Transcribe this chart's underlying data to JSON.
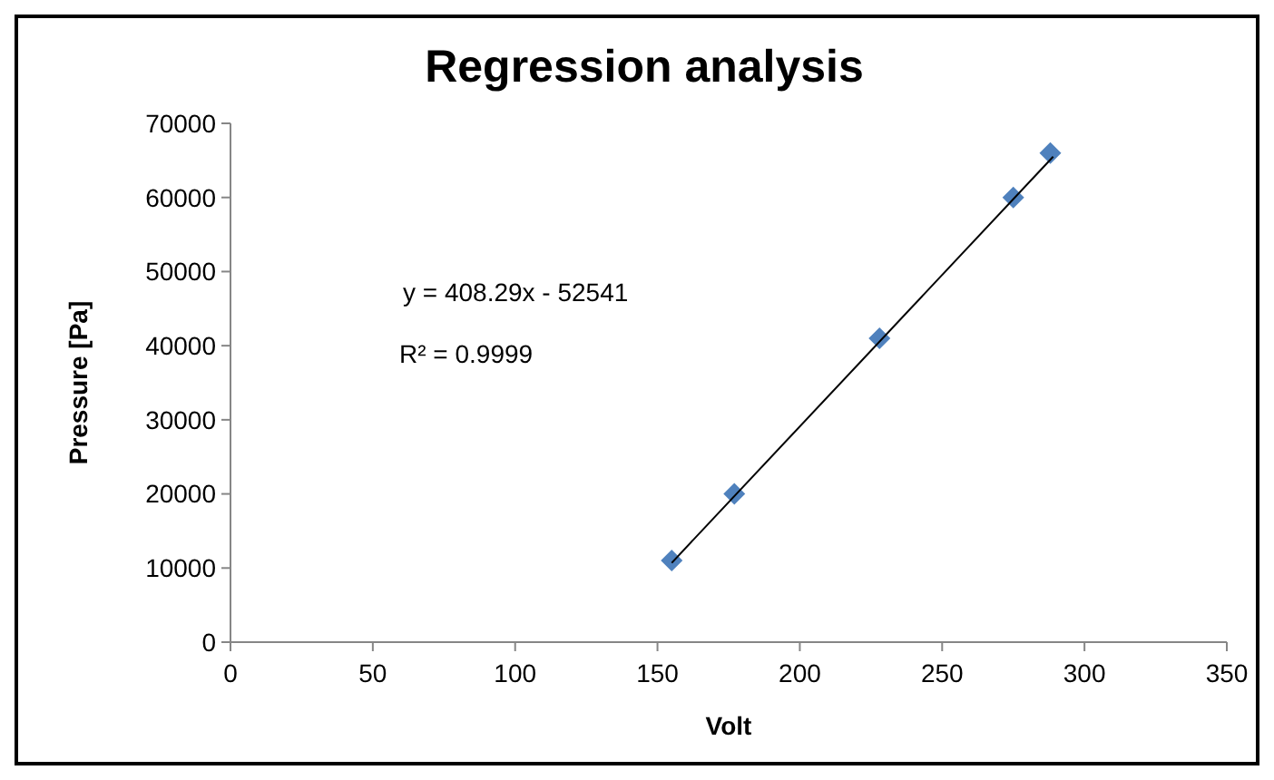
{
  "chart_data": {
    "type": "scatter",
    "title": "Regression analysis",
    "xlabel": "Volt",
    "ylabel": "Pressure [Pa]",
    "xlim": [
      0,
      350
    ],
    "xticks": [
      0,
      50,
      100,
      150,
      200,
      250,
      300,
      350
    ],
    "ylim": [
      0,
      70000
    ],
    "yticks": [
      0,
      10000,
      20000,
      30000,
      40000,
      50000,
      60000,
      70000
    ],
    "grid": false,
    "marker": "diamond",
    "series": [
      {
        "type": "scatter",
        "color": "#4f81bd",
        "x": [
          155,
          177,
          228,
          275,
          288
        ],
        "values": [
          11000,
          20000,
          41000,
          60000,
          66000
        ]
      },
      {
        "type": "line",
        "color": "#000000",
        "marker": "none",
        "line_style": "solid",
        "x": [
          155,
          289
        ],
        "values": [
          10700,
          65500
        ]
      }
    ],
    "annotations": [
      "y = 408.29x - 52541",
      "R² = 0.9999"
    ]
  }
}
